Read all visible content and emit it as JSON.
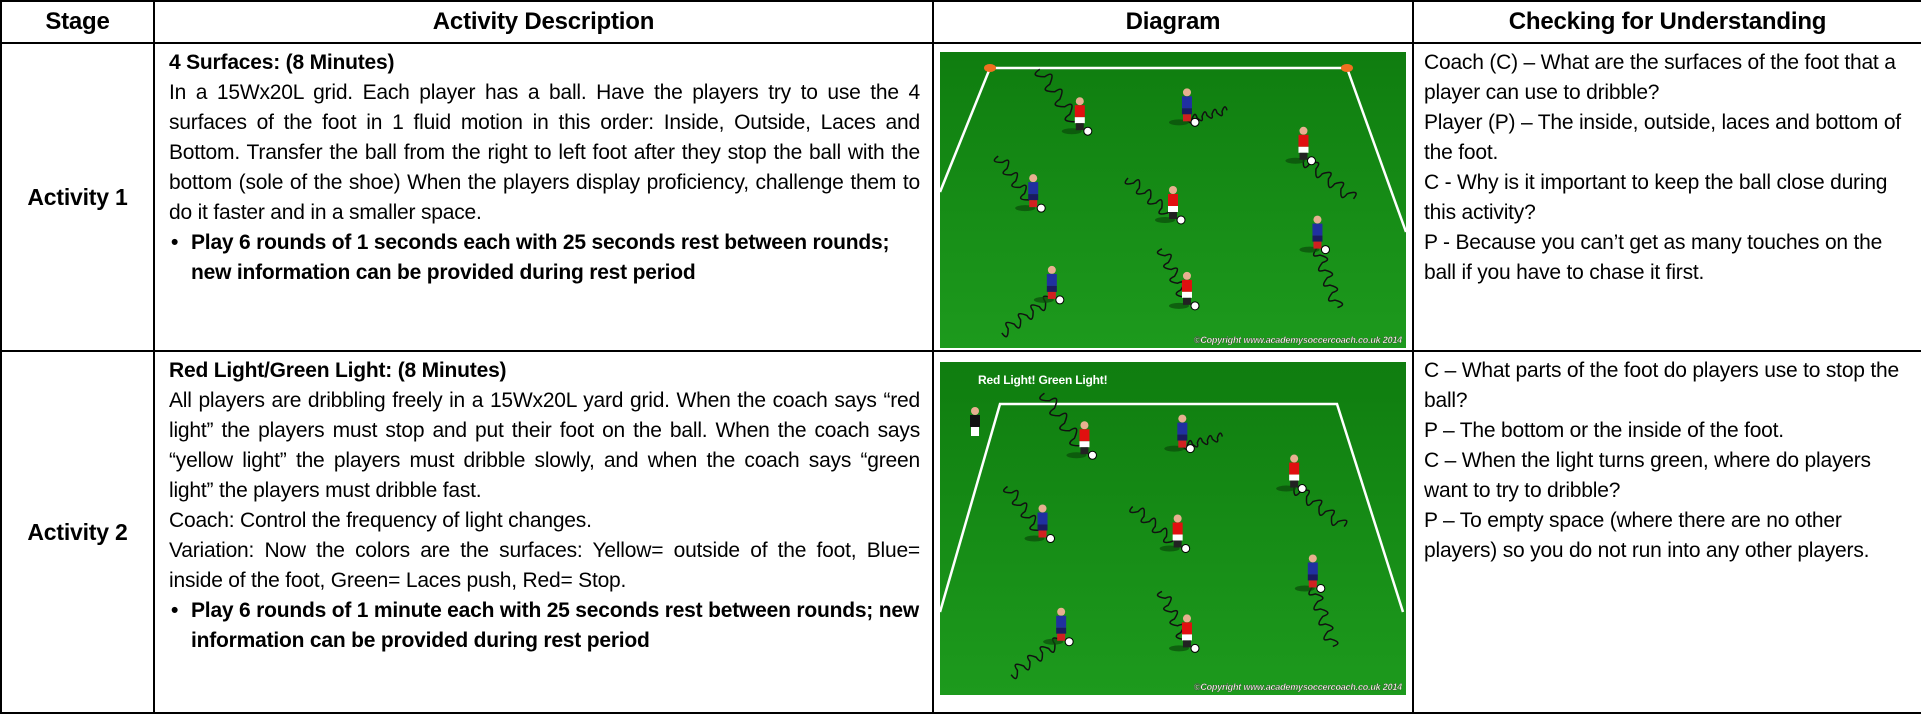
{
  "table": {
    "headers": [
      "Stage",
      "Activity Description",
      "Diagram",
      "Checking for Understanding"
    ],
    "rows": [
      {
        "stage": "Activity 1",
        "title": "4 Surfaces:  (8 Minutes)",
        "paragraphs": [
          "In a 15Wx20L grid. Each player has a ball. Have the players try to use the 4 surfaces of the foot in 1 fluid motion in this order: Inside, Outside, Laces and Bottom. Transfer the ball from the right to left foot after they stop the ball with the bottom (sole of the shoe) When the players display proficiency, challenge them to do it faster and in a smaller space."
        ],
        "bullet": "Play 6 rounds of 1 seconds each with 25 seconds rest between rounds; new information can be provided during rest period",
        "diagram": {
          "copyright": "©Copyright www.academysoccercoach.co.uk 2014"
        },
        "checks": [
          "Coach (C) – What are the surfaces of the foot that a player can use to dribble?",
          "Player (P) – The inside, outside, laces and bottom of the foot.",
          "C - Why is it important to keep the ball close during this activity?",
          "P - Because you can’t get as many touches on the ball if you have to chase it first."
        ]
      },
      {
        "stage": "Activity 2",
        "title": "Red Light/Green Light:  (8 Minutes)",
        "paragraphs": [
          "All players are dribbling freely in a 15Wx20L yard grid. When the coach says “red light” the players must stop and put their foot on the ball. When the coach says “yellow light” the players must dribble slowly, and when the coach says “green light” the players must dribble fast.",
          "Coach: Control the frequency of light changes.",
          "Variation: Now the colors are the surfaces: Yellow= outside of the foot, Blue= inside of the foot, Green= Laces push, Red= Stop."
        ],
        "bullet": "Play 6 rounds of 1 minute each with 25 seconds rest between rounds; new information can be provided during rest period",
        "diagram": {
          "label": "Red Light!  Green Light!",
          "copyright": "©Copyright www.academysoccercoach.co.uk 2014"
        },
        "checks": [
          "C – What parts of the foot do players use to stop the ball?",
          "P – The bottom or the inside of the foot.",
          "C – When the light turns green, where do players want to try to dribble?",
          "P – To empty space (where there are no other players) so you do not run into any other players."
        ]
      }
    ]
  }
}
